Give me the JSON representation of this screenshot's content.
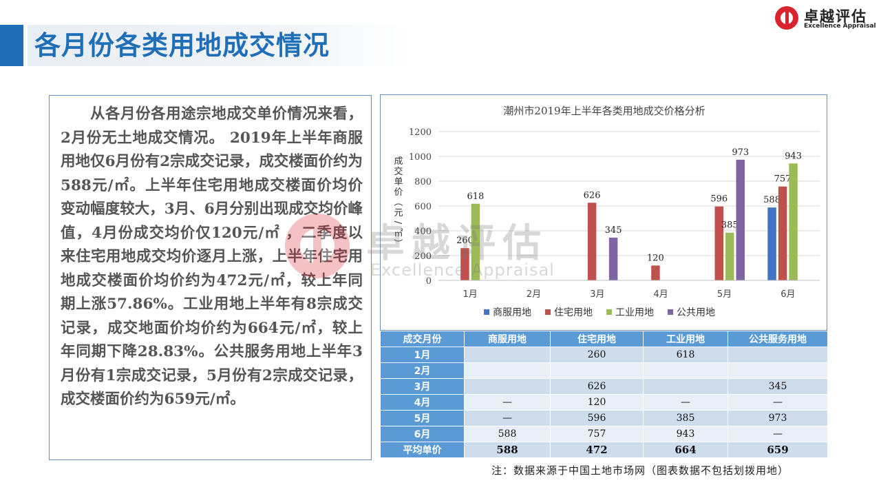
{
  "page": {
    "title": "各月份各类用地成交情况",
    "note": "注：数据来源于中国土地市场网（图表数据不包括划拨用地）"
  },
  "logo": {
    "cn": "卓越评估",
    "en": "Excellence Appraisal"
  },
  "watermark": {
    "cn": "卓越评估",
    "en": "Excellence Appraisal"
  },
  "text_box": {
    "paragraph": "从各月份各用途宗地成交单价情况来看，2月份无土地成交情况。 2019年上半年商服用地仅6月份有2宗成交记录，成交楼面价约为588元/㎡。上半年住宅用地成交楼面价均价变动幅度较大，3月、6月分别出现成交均价峰值，4月份成交均价仅120元/㎡ ，二季度以来住宅用地成交均价逐月上涨，上半年住宅用地成交楼面价均价约为472元/㎡，较上年同期上涨57.86%。工业用地上半年有8宗成交记录，成交地面价均价约为664元/㎡，较上年同期下降28.83%。公共服务用地上半年3月份有1宗成交记录，5月份有2宗成交记录，成交楼面价约为659元/㎡。"
  },
  "colors": {
    "accent": "#1f6fb8",
    "commercial": "#4472c4",
    "residential": "#c0504d",
    "industrial": "#9bbb59",
    "public": "#8064a2",
    "table_header": "#5b9bd5"
  },
  "chart_data": {
    "type": "bar",
    "title": "潮州市2019年上半年各类用地成交价格分析",
    "ylabel": "成交单价（元/㎡）",
    "ylim": [
      0,
      1200
    ],
    "yticks": [
      0,
      200,
      400,
      600,
      800,
      1000,
      1200
    ],
    "grid": true,
    "legend": "bottom",
    "categories": [
      "1月",
      "2月",
      "3月",
      "4月",
      "5月",
      "6月"
    ],
    "series": [
      {
        "name": "商服用地",
        "color": "#4472c4",
        "values": [
          null,
          null,
          null,
          null,
          null,
          588
        ]
      },
      {
        "name": "住宅用地",
        "color": "#c0504d",
        "values": [
          260,
          null,
          626,
          120,
          596,
          757
        ]
      },
      {
        "name": "工业用地",
        "color": "#9bbb59",
        "values": [
          618,
          null,
          null,
          null,
          385,
          943
        ]
      },
      {
        "name": "公共用地",
        "color": "#8064a2",
        "values": [
          null,
          null,
          345,
          null,
          973,
          null
        ]
      }
    ]
  },
  "table": {
    "headers": [
      "成交月份",
      "商服用地",
      "住宅用地",
      "工业用地",
      "公共服务用地"
    ],
    "rows": [
      [
        "1月",
        "",
        "260",
        "618",
        ""
      ],
      [
        "2月",
        "",
        "",
        "",
        ""
      ],
      [
        "3月",
        "",
        "626",
        "",
        "345"
      ],
      [
        "4月",
        "—",
        "120",
        "—",
        "—"
      ],
      [
        "5月",
        "—",
        "596",
        "385",
        "973"
      ],
      [
        "6月",
        "588",
        "757",
        "943",
        "—"
      ]
    ],
    "avg_row": [
      "平均单价",
      "588",
      "472",
      "664",
      "659"
    ]
  }
}
